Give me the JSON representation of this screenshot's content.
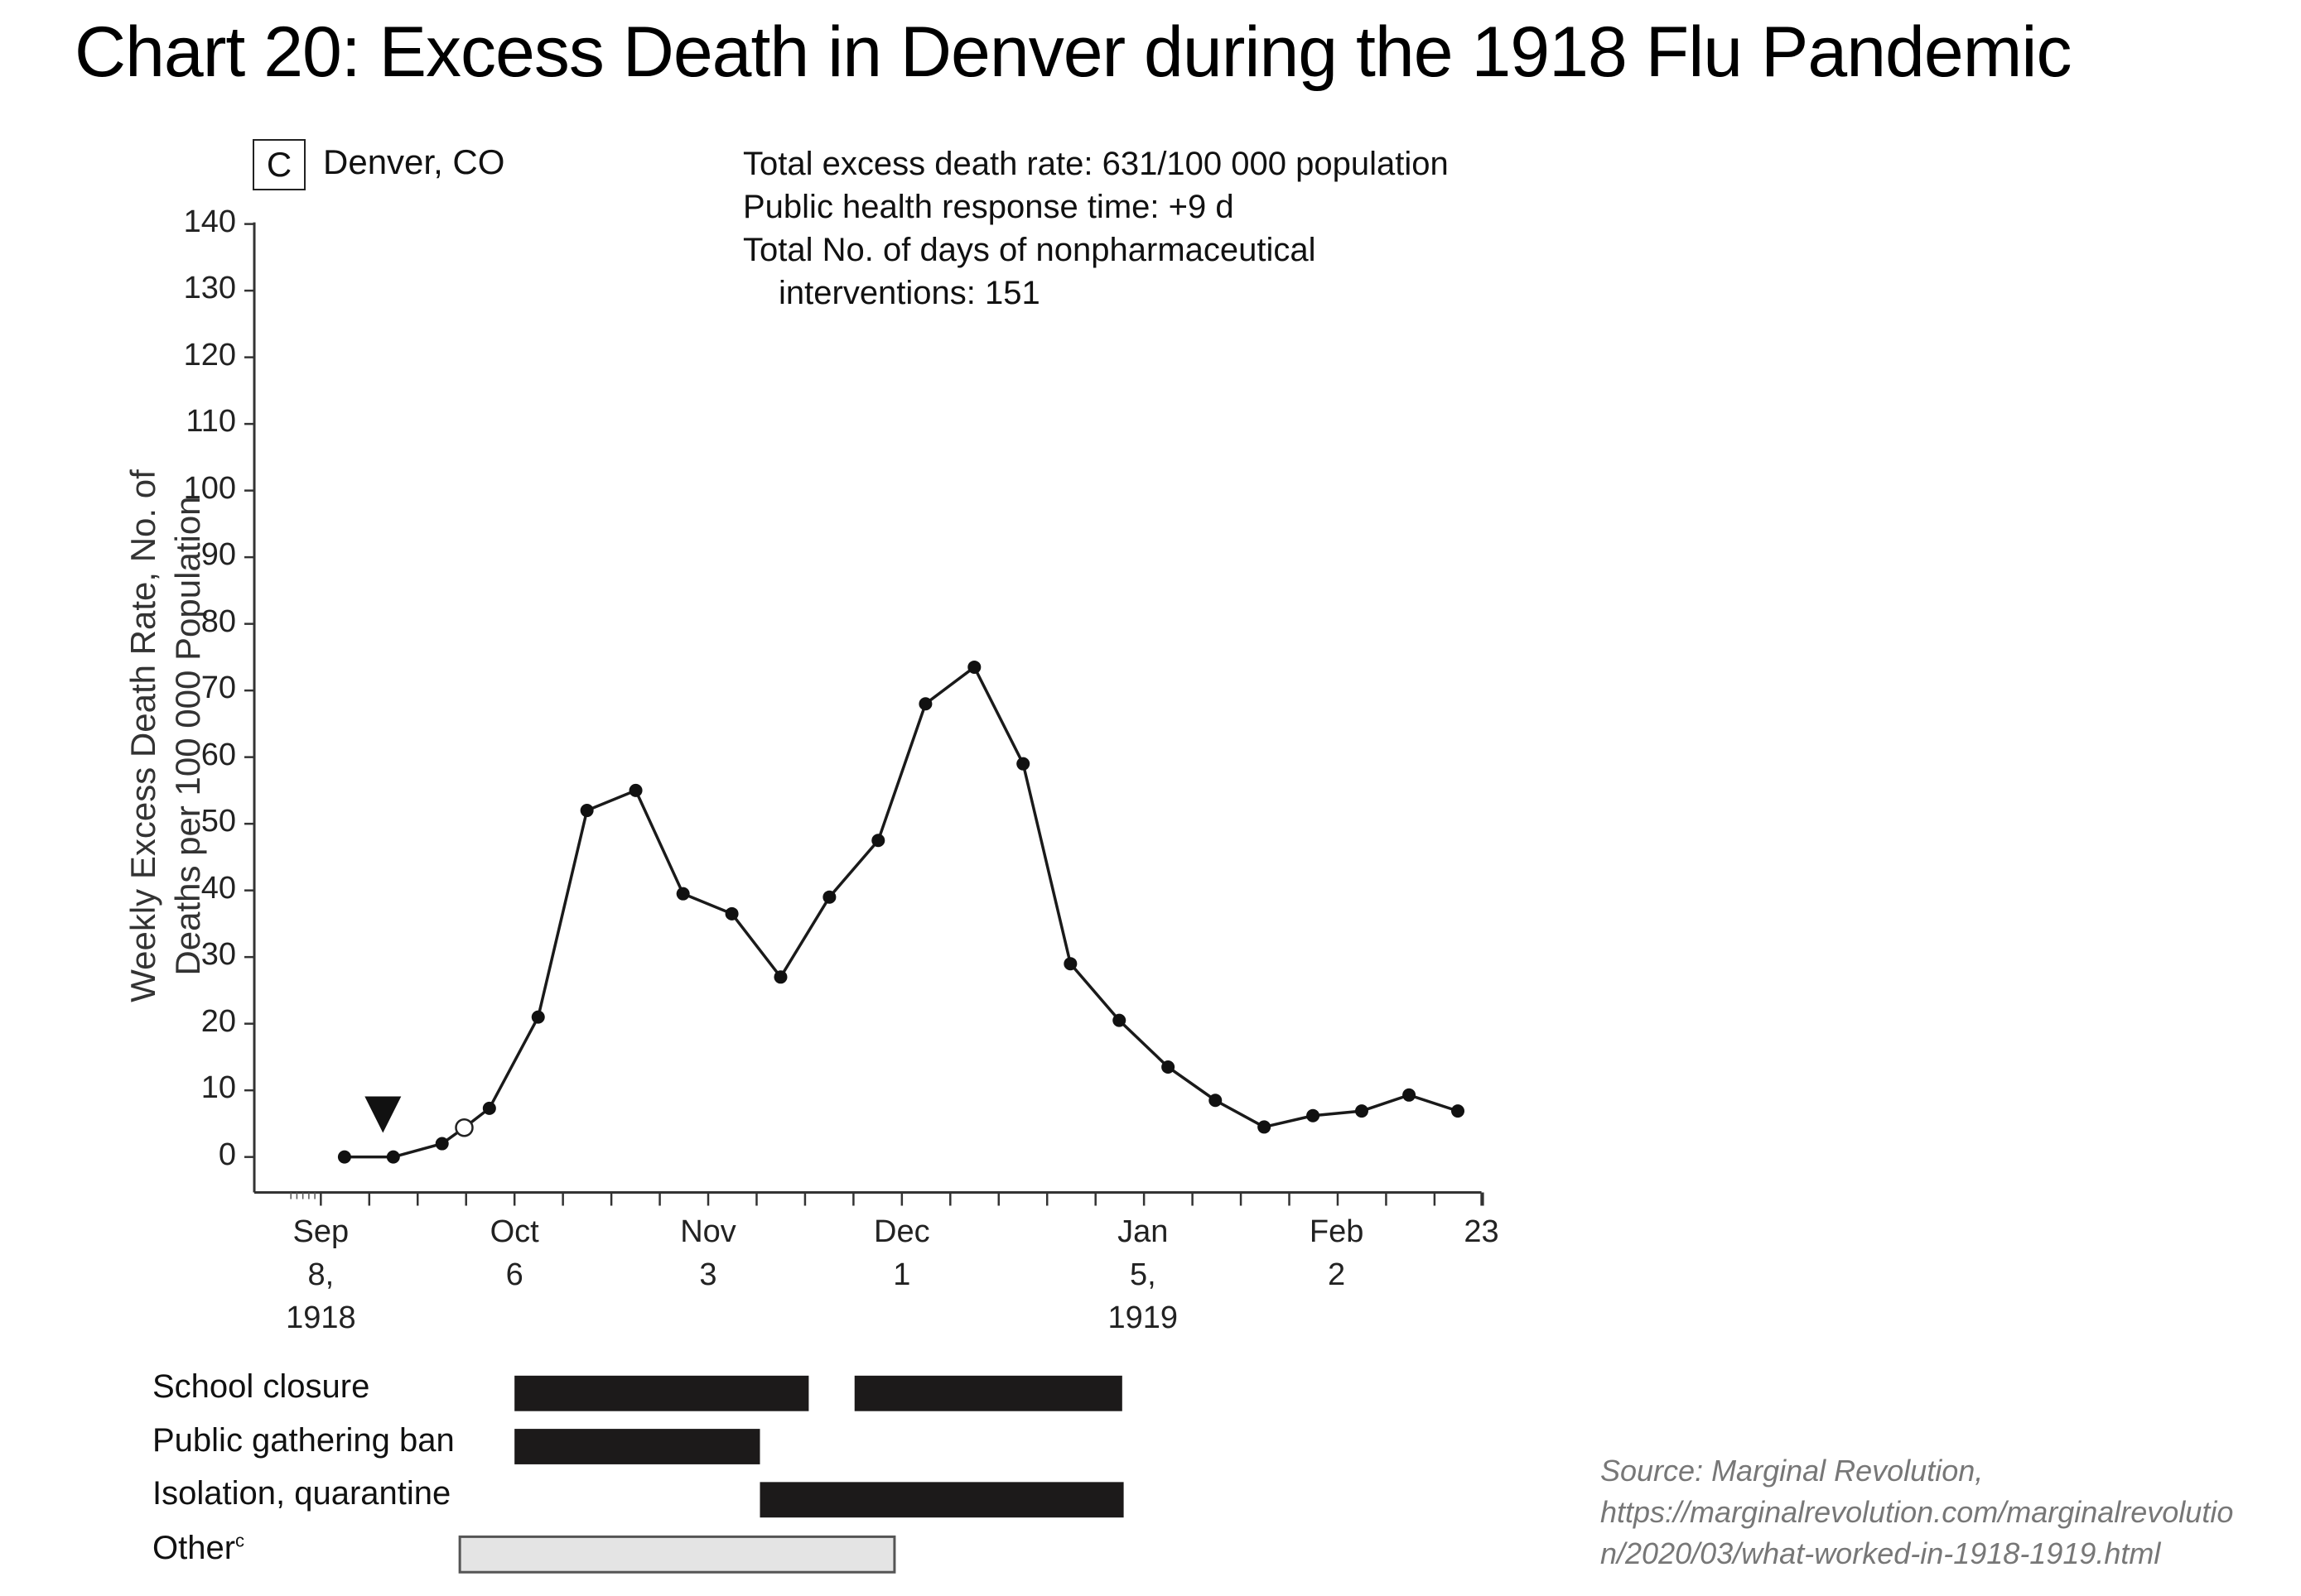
{
  "page": {
    "title": "Chart 20: Excess Death in Denver during the 1918 Flu Pandemic"
  },
  "panel": {
    "letter": "C",
    "city": "Denver, CO"
  },
  "annotations": {
    "line1": "Total excess death rate: 631/100 000 population",
    "line2": "Public health response time: +9 d",
    "line3": "Total No. of days of nonpharmaceutical",
    "line4": "interventions: 151"
  },
  "axes": {
    "ylabel_line1": "Weekly Excess Death Rate, No. of",
    "ylabel_line2": "Deaths per 100 000 Population",
    "yticks": [
      "140",
      "130",
      "120",
      "110",
      "100",
      "90",
      "80",
      "70",
      "60",
      "50",
      "40",
      "30",
      "20",
      "10",
      "0"
    ],
    "xticks": [
      {
        "l1": "Sep",
        "l2": "8,",
        "l3": "1918"
      },
      {
        "l1": "Oct",
        "l2": "6",
        "l3": ""
      },
      {
        "l1": "Nov",
        "l2": "3",
        "l3": ""
      },
      {
        "l1": "Dec",
        "l2": "1",
        "l3": ""
      },
      {
        "l1": "Jan",
        "l2": "5,",
        "l3": "1919"
      },
      {
        "l1": "Feb",
        "l2": "2",
        "l3": ""
      },
      {
        "l1": "23",
        "l2": "",
        "l3": ""
      }
    ]
  },
  "interventions": {
    "labels": [
      "School closure",
      "Public gathering ban",
      "Isolation, quarantine",
      "Other"
    ],
    "other_superscript": "c"
  },
  "source": {
    "line1": "Source: Marginal Revolution,",
    "line2": "https://marginalrevolution.com/marginalrevolutio",
    "line3": "n/2020/03/what-worked-in-1918-1919.html"
  },
  "colors": {
    "line": "#1a1a1a",
    "bar_dark": "#1c1a1a",
    "bar_light": "#e4e4e4",
    "source_text": "#777777"
  },
  "chart_data": {
    "type": "line",
    "title": "Chart 20: Excess Death in Denver during the 1918 Flu Pandemic",
    "subtitle": "C Denver, CO",
    "xlabel": "",
    "ylabel": "Weekly Excess Death Rate, No. of Deaths per 100 000 Population",
    "ylim": [
      0,
      140
    ],
    "yticks": [
      0,
      10,
      20,
      30,
      40,
      50,
      60,
      70,
      80,
      90,
      100,
      110,
      120,
      130,
      140
    ],
    "x_tick_labels": [
      "Sep 8, 1918",
      "Oct 6",
      "Nov 3",
      "Dec 1",
      "Jan 5, 1919",
      "Feb 2",
      "23"
    ],
    "grid": false,
    "series": [
      {
        "name": "Weekly excess death rate",
        "x": [
          "1918-09-14",
          "1918-09-21",
          "1918-09-28",
          "1918-10-02",
          "1918-10-05",
          "1918-10-12",
          "1918-10-19",
          "1918-10-26",
          "1918-11-02",
          "1918-11-09",
          "1918-11-16",
          "1918-11-23",
          "1918-11-30",
          "1918-12-07",
          "1918-12-14",
          "1918-12-21",
          "1918-12-28",
          "1919-01-04",
          "1919-01-11",
          "1919-01-18",
          "1919-01-25",
          "1919-02-01",
          "1919-02-08",
          "1919-02-15",
          "1919-02-22"
        ],
        "values": [
          0,
          0,
          2,
          4.4,
          7.3,
          21,
          52,
          55,
          39.5,
          36.5,
          27,
          39,
          47.5,
          68,
          73.5,
          59,
          29,
          20.5,
          13.5,
          8.5,
          4.5,
          6.2,
          6.9,
          9.3,
          6.9
        ],
        "open_marker_index": 3
      }
    ],
    "annotations": [
      {
        "type": "triangle-marker",
        "x": "1918-09-19",
        "label": "Public health response time: +9 d"
      },
      {
        "text": "Total excess death rate: 631/100 000 population"
      },
      {
        "text": "Public health response time: +9 d"
      },
      {
        "text": "Total No. of days of nonpharmaceutical interventions: 151"
      }
    ],
    "intervention_bars": [
      {
        "label": "School closure",
        "segments": [
          [
            "1918-10-06",
            "1918-11-13"
          ],
          [
            "1918-11-19",
            "1918-12-24"
          ]
        ],
        "color": "#1c1a1a"
      },
      {
        "label": "Public gathering ban",
        "segments": [
          [
            "1918-10-06",
            "1918-11-07"
          ]
        ],
        "color": "#1c1a1a"
      },
      {
        "label": "Isolation, quarantine",
        "segments": [
          [
            "1918-11-07",
            "1918-12-24"
          ]
        ],
        "color": "#1c1a1a"
      },
      {
        "label": "Other",
        "segments": [
          [
            "1918-09-29",
            "1918-11-25"
          ]
        ],
        "color": "#e4e4e4"
      }
    ]
  }
}
